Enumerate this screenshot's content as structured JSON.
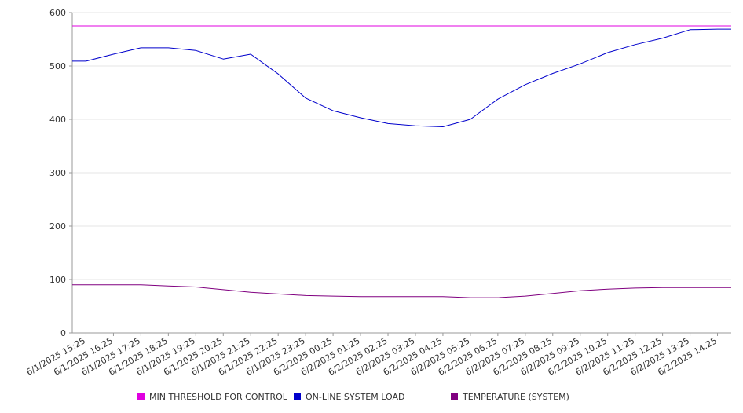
{
  "chart_data": {
    "type": "line",
    "title": "",
    "xlabel": "",
    "ylabel": "",
    "ylim": [
      0,
      600
    ],
    "yticks": [
      0,
      100,
      200,
      300,
      400,
      500,
      600
    ],
    "grid": true,
    "legend_placement": "bottom",
    "x": [
      "6/1/2025 15:25",
      "6/1/2025 16:25",
      "6/1/2025 17:25",
      "6/1/2025 18:25",
      "6/1/2025 19:25",
      "6/1/2025 20:25",
      "6/1/2025 21:25",
      "6/1/2025 22:25",
      "6/1/2025 23:25",
      "6/2/2025 00:25",
      "6/2/2025 01:25",
      "6/2/2025 02:25",
      "6/2/2025 03:25",
      "6/2/2025 04:25",
      "6/2/2025 05:25",
      "6/2/2025 06:25",
      "6/2/2025 07:25",
      "6/2/2025 08:25",
      "6/2/2025 09:25",
      "6/2/2025 10:25",
      "6/2/2025 11:25",
      "6/2/2025 12:25",
      "6/2/2025 13:25",
      "6/2/2025 14:25"
    ],
    "series": [
      {
        "name": "MIN THRESHOLD FOR CONTROL",
        "color": "#e000e0",
        "values": [
          575,
          575,
          575,
          575,
          575,
          575,
          575,
          575,
          575,
          575,
          575,
          575,
          575,
          575,
          575,
          575,
          575,
          575,
          575,
          575,
          575,
          575,
          575,
          575
        ]
      },
      {
        "name": "ON-LINE SYSTEM LOAD",
        "color": "#0000cc",
        "values": [
          509,
          522,
          534,
          534,
          529,
          513,
          522,
          485,
          440,
          416,
          403,
          392,
          388,
          386,
          400,
          438,
          465,
          486,
          504,
          525,
          540,
          552,
          568,
          569
        ]
      },
      {
        "name": "TEMPERATURE (SYSTEM)",
        "color": "#800080",
        "values": [
          90,
          90,
          90,
          88,
          86,
          81,
          76,
          73,
          70,
          69,
          68,
          68,
          68,
          68,
          66,
          66,
          69,
          74,
          79,
          82,
          84,
          85,
          85,
          85
        ]
      }
    ]
  }
}
